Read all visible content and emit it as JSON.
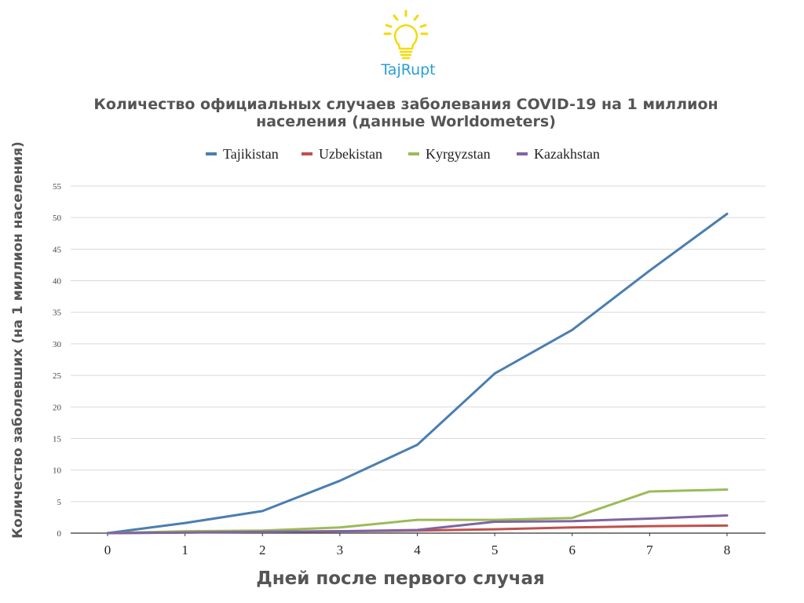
{
  "logo": {
    "text": "TajRupt",
    "icon": "lightbulb-icon",
    "color": "#2a9fd6",
    "bulb_color": "#f5d90a"
  },
  "chart_data": {
    "type": "line",
    "title": "Количество официальных случаев заболевания COVID-19 на 1 миллион населения (данные Worldometers)",
    "xlabel": "Дней после первого случая",
    "ylabel": "Количество заболевших (на 1 миллион населения)",
    "x": [
      0,
      1,
      2,
      3,
      4,
      5,
      6,
      7,
      8
    ],
    "xlim": [
      0,
      8
    ],
    "ylim": [
      0,
      55
    ],
    "yticks": [
      0,
      5,
      10,
      15,
      20,
      25,
      30,
      35,
      40,
      45,
      50,
      55
    ],
    "grid": true,
    "legend": "top",
    "series": [
      {
        "name": "Tajikistan",
        "color": "#4a7eb0",
        "values": [
          0,
          1.6,
          3.5,
          8.3,
          14.0,
          25.3,
          32.2,
          41.6,
          50.6
        ]
      },
      {
        "name": "Uzbekistan",
        "color": "#c0504d",
        "values": [
          0,
          0.1,
          0.2,
          0.3,
          0.4,
          0.6,
          0.9,
          1.1,
          1.2
        ]
      },
      {
        "name": "Kyrgyzstan",
        "color": "#9bbb59",
        "values": [
          0,
          0.3,
          0.4,
          0.9,
          2.1,
          2.1,
          2.4,
          6.6,
          6.9
        ]
      },
      {
        "name": "Kazakhstan",
        "color": "#8064a2",
        "values": [
          0,
          0.1,
          0.2,
          0.3,
          0.5,
          1.8,
          1.9,
          2.3,
          2.8
        ]
      }
    ]
  }
}
